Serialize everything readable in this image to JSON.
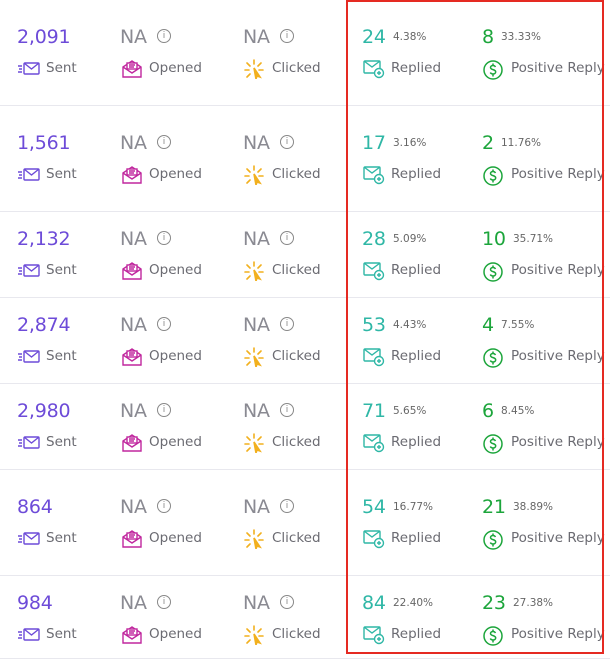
{
  "labels": {
    "sent": "Sent",
    "opened": "Opened",
    "clicked": "Clicked",
    "replied": "Replied",
    "positive_reply": "Positive Reply",
    "info_glyph": "i"
  },
  "colors": {
    "sent": "#6d4bd8",
    "na": "#8a8a92",
    "opened_icon": "#c0279e",
    "clicked_icon": "#f2b01e",
    "replied": "#2fb7a6",
    "positive": "#1ca53b",
    "highlight_border": "#e52a22"
  },
  "icons": {
    "sent": "envelope-send-icon",
    "opened": "envelope-open-icon",
    "clicked": "click-burst-icon",
    "replied": "envelope-reply-icon",
    "positive_reply": "dollar-circle-icon",
    "info": "info-icon"
  },
  "rows": [
    {
      "sent": "2,091",
      "opened": "NA",
      "clicked": "NA",
      "replied": "24",
      "replied_pct": "4.38%",
      "positive": "8",
      "positive_pct": "33.33%"
    },
    {
      "sent": "1,561",
      "opened": "NA",
      "clicked": "NA",
      "replied": "17",
      "replied_pct": "3.16%",
      "positive": "2",
      "positive_pct": "11.76%"
    },
    {
      "sent": "2,132",
      "opened": "NA",
      "clicked": "NA",
      "replied": "28",
      "replied_pct": "5.09%",
      "positive": "10",
      "positive_pct": "35.71%"
    },
    {
      "sent": "2,874",
      "opened": "NA",
      "clicked": "NA",
      "replied": "53",
      "replied_pct": "4.43%",
      "positive": "4",
      "positive_pct": "7.55%"
    },
    {
      "sent": "2,980",
      "opened": "NA",
      "clicked": "NA",
      "replied": "71",
      "replied_pct": "5.65%",
      "positive": "6",
      "positive_pct": "8.45%"
    },
    {
      "sent": "864",
      "opened": "NA",
      "clicked": "NA",
      "replied": "54",
      "replied_pct": "16.77%",
      "positive": "21",
      "positive_pct": "38.89%"
    },
    {
      "sent": "984",
      "opened": "NA",
      "clicked": "NA",
      "replied": "84",
      "replied_pct": "22.40%",
      "positive": "23",
      "positive_pct": "27.38%"
    }
  ]
}
